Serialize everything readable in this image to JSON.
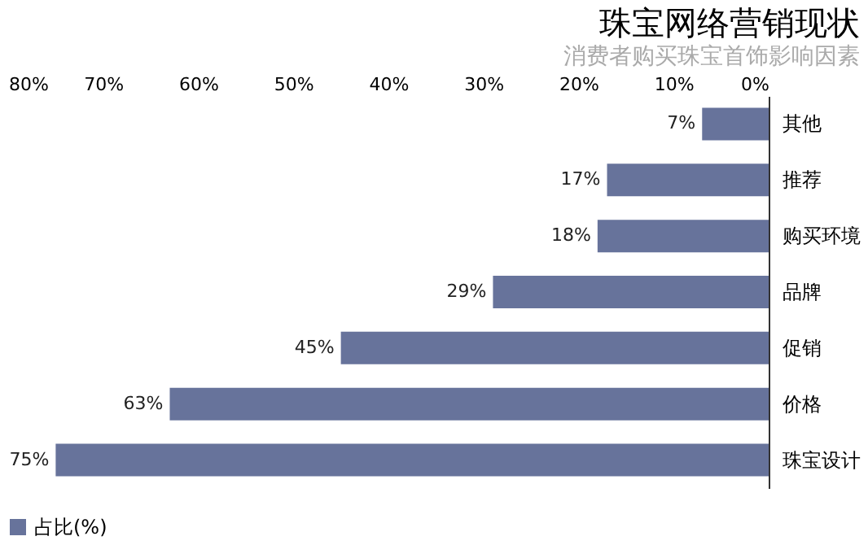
{
  "chart_data": {
    "type": "bar",
    "orientation": "horizontal",
    "title": "珠宝网络营销现状",
    "subtitle": "消费者购买珠宝首饰影响因素",
    "categories": [
      "其他",
      "推荐",
      "购买环境",
      "品牌",
      "促销",
      "价格",
      "珠宝设计"
    ],
    "series": [
      {
        "name": "占比(%)",
        "color": "#67739b",
        "values": [
          7,
          17,
          18,
          29,
          45,
          63,
          75
        ],
        "value_labels": [
          "7%",
          "17%",
          "18%",
          "29%",
          "45%",
          "63%",
          "75%"
        ]
      }
    ],
    "xlim": [
      80,
      0
    ],
    "xticks": [
      {
        "value": 0,
        "label": "0%"
      },
      {
        "value": 10,
        "label": "10%"
      },
      {
        "value": 20,
        "label": "20%"
      },
      {
        "value": 30,
        "label": "30%"
      },
      {
        "value": 40,
        "label": "40%"
      },
      {
        "value": 50,
        "label": "50%"
      },
      {
        "value": 60,
        "label": "60%"
      },
      {
        "value": 70,
        "label": "70%"
      },
      {
        "value": 80,
        "label": "80%"
      }
    ],
    "grid": false,
    "legend": "bottom"
  }
}
